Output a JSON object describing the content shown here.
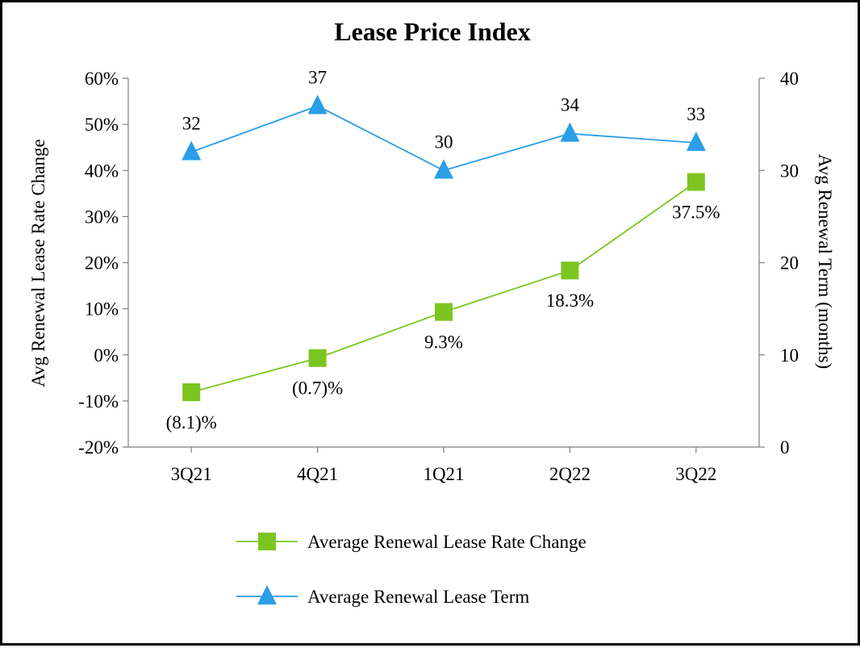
{
  "chart_data": {
    "type": "line",
    "title": "Lease Price Index",
    "categories": [
      "3Q21",
      "4Q21",
      "1Q21",
      "2Q22",
      "3Q22"
    ],
    "y_left": {
      "label": "Avg Renewal Lease Rate Change",
      "min": -20,
      "max": 60,
      "step": 10,
      "tick_labels": [
        "-20%",
        "-10%",
        "0%",
        "10%",
        "20%",
        "30%",
        "40%",
        "50%",
        "60%"
      ]
    },
    "y_right": {
      "label": "Avg Renewal Term (months)",
      "min": 0,
      "max": 40,
      "step": 10,
      "tick_labels": [
        "0",
        "10",
        "20",
        "30",
        "40"
      ]
    },
    "series": [
      {
        "name": "Average Renewal Lease Rate Change",
        "axis": "left",
        "marker": "square",
        "color": "#7cc520",
        "values": [
          -8.1,
          -0.7,
          9.3,
          18.3,
          37.5
        ],
        "data_labels": [
          "(8.1)%",
          "(0.7)%",
          "9.3%",
          "18.3%",
          "37.5%"
        ],
        "label_position": "below"
      },
      {
        "name": "Average Renewal Lease Term",
        "axis": "right",
        "marker": "triangle",
        "color": "#2a9ee6",
        "values": [
          32,
          37,
          30,
          34,
          33
        ],
        "data_labels": [
          "32",
          "37",
          "30",
          "34",
          "33"
        ],
        "label_position": "above"
      }
    ],
    "grid": false,
    "legend_position": "bottom"
  }
}
